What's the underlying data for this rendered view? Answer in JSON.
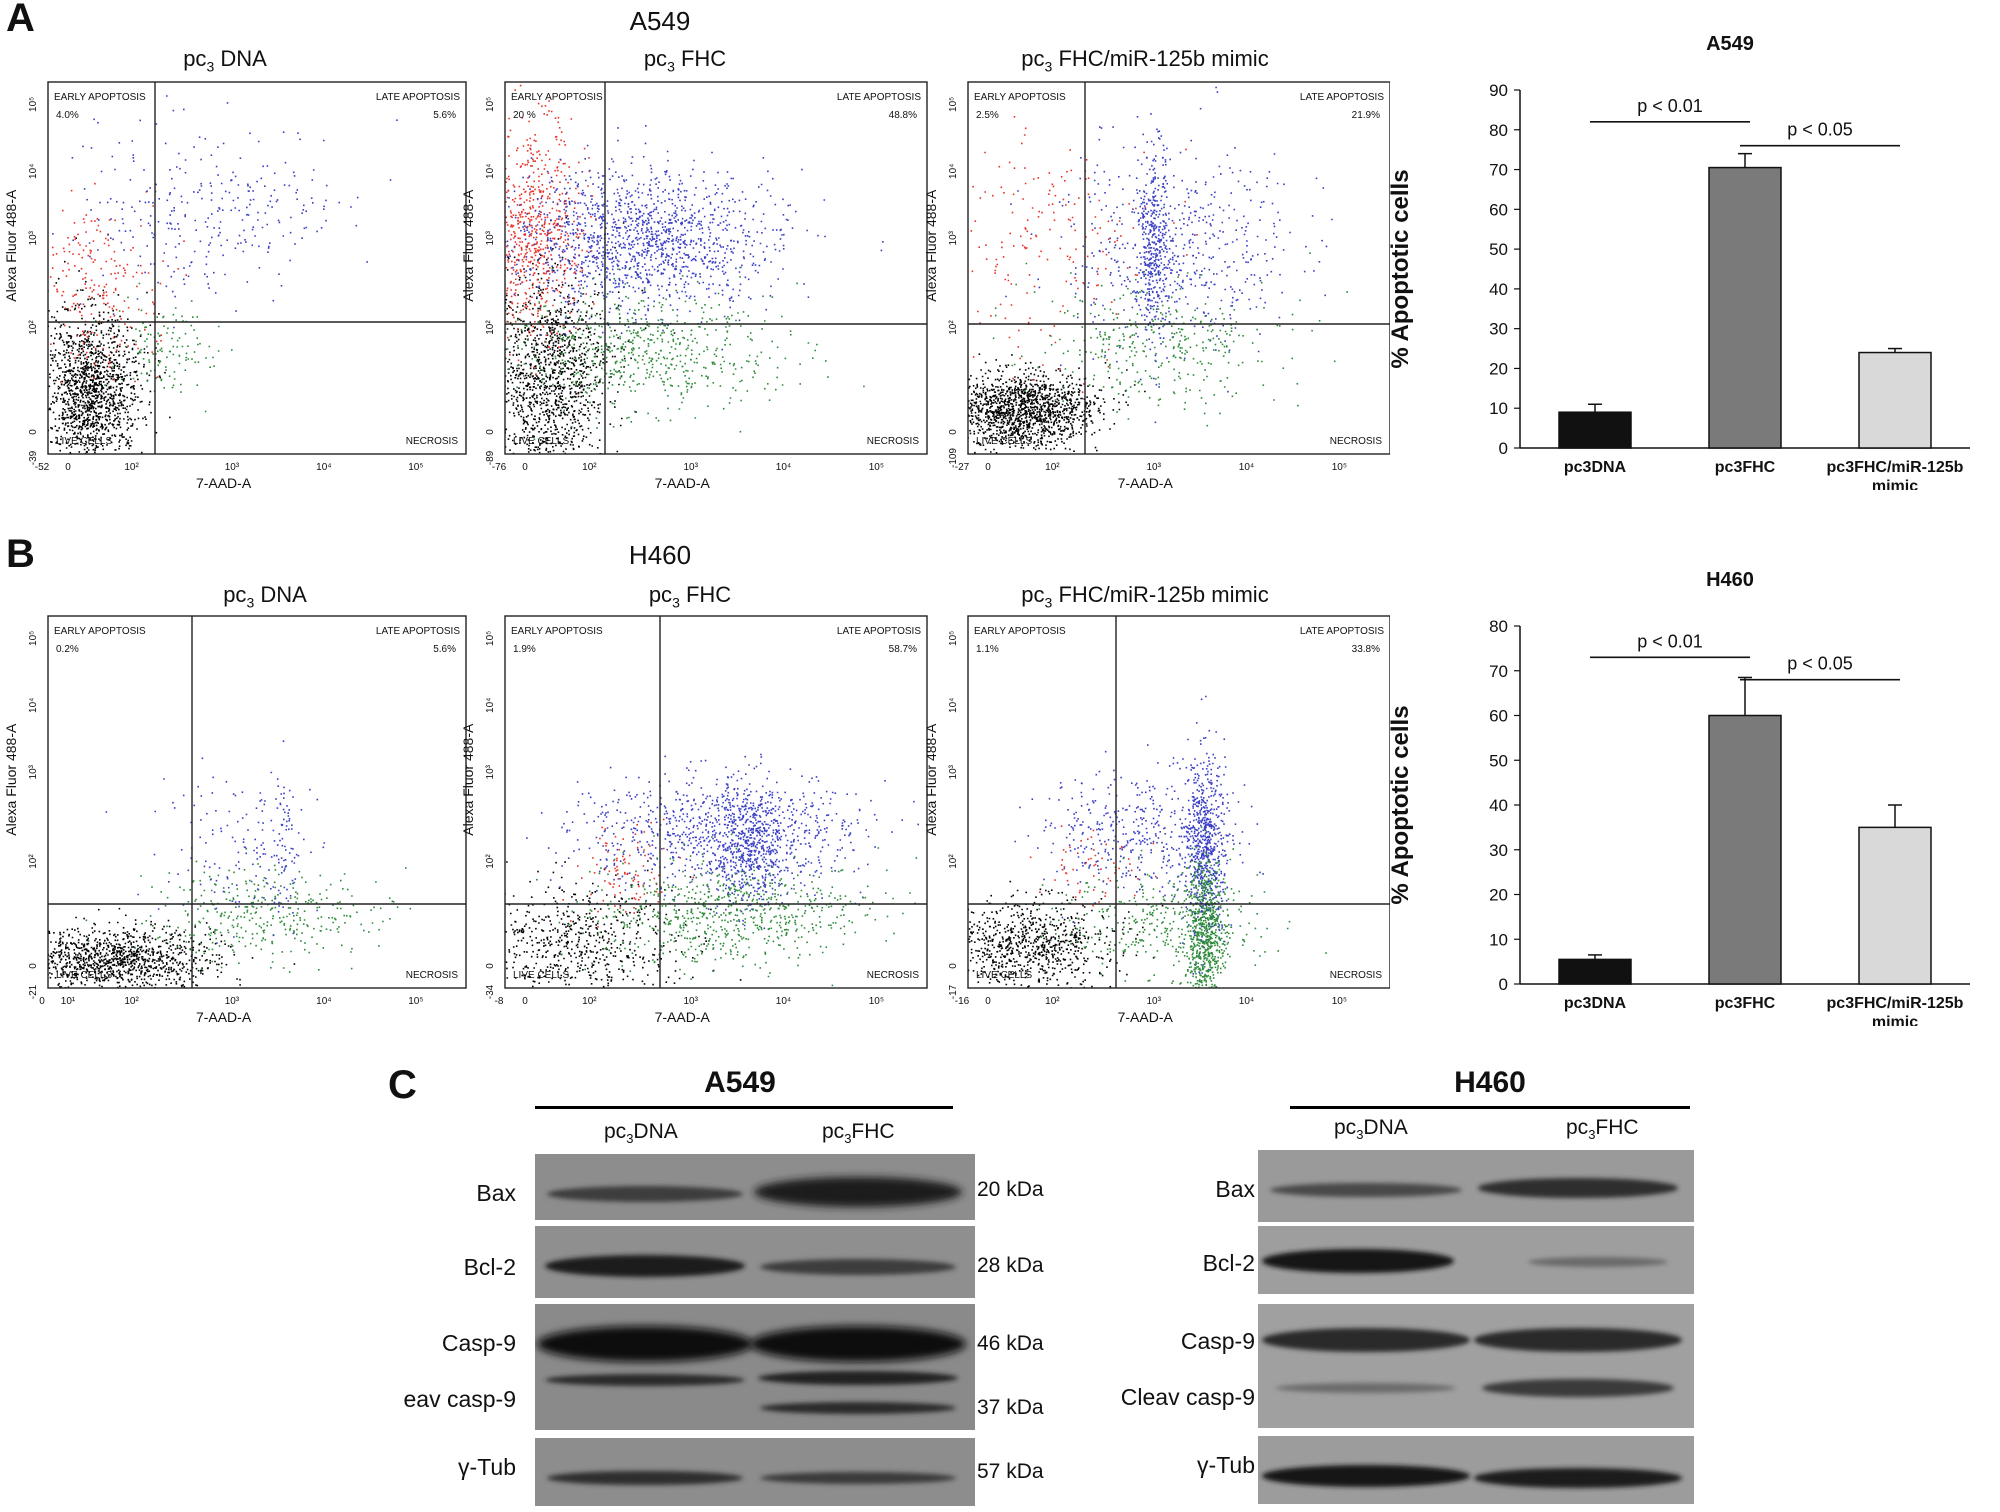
{
  "panels": {
    "A": "A",
    "B": "B",
    "C": "C"
  },
  "flow": {
    "rows": [
      {
        "title": "A549",
        "plots": [
          {
            "title_a": "pc",
            "title_sub": "3",
            "title_b": " DNA",
            "early": "4.0%",
            "late": "5.6%",
            "y_ticks": [
              "-39",
              "0",
              "10²",
              "10³",
              "10⁴",
              "10⁵"
            ],
            "x_ticks": [
              "-52",
              "0",
              "10²",
              "10³",
              "10⁴",
              "10⁵"
            ]
          },
          {
            "title_a": "pc",
            "title_sub": "3",
            "title_b": " FHC",
            "early": "20 %",
            "late": "48.8%",
            "y_ticks": [
              "-89",
              "0",
              "10²",
              "10³",
              "10⁴",
              "10⁵"
            ],
            "x_ticks": [
              "-76",
              "0",
              "10²",
              "10³",
              "10⁴",
              "10⁵"
            ]
          },
          {
            "title_a": "pc",
            "title_sub": "3",
            "title_b": " FHC/miR-125b mimic",
            "early": "2.5%",
            "late": "21.9%",
            "y_ticks": [
              "-109",
              "0",
              "10²",
              "10³",
              "10⁴",
              "10⁵"
            ],
            "x_ticks": [
              "-27",
              "0",
              "10²",
              "10³",
              "10⁴",
              "10⁵"
            ]
          }
        ]
      },
      {
        "title": "H460",
        "plots": [
          {
            "title_a": "pc",
            "title_sub": "3",
            "title_b": " DNA",
            "early": "0.2%",
            "late": "5.6%",
            "y_ticks": [
              "-21",
              "0",
              "10²",
              "10³",
              "10⁴",
              "10⁵"
            ],
            "x_ticks": [
              "0",
              "10¹",
              "10²",
              "10³",
              "10⁴",
              "10⁵"
            ]
          },
          {
            "title_a": "pc",
            "title_sub": "3",
            "title_b": " FHC",
            "early": "1.9%",
            "late": "58.7%",
            "y_ticks": [
              "-34",
              "0",
              "10²",
              "10³",
              "10⁴",
              "10⁵"
            ],
            "x_ticks": [
              "-8",
              "0",
              "10²",
              "10³",
              "10⁴",
              "10⁵"
            ]
          },
          {
            "title_a": "pc",
            "title_sub": "3",
            "title_b": " FHC/miR-125b mimic",
            "early": "1.1%",
            "late": "33.8%",
            "y_ticks": [
              "-17",
              "0",
              "10²",
              "10³",
              "10⁴",
              "10⁵"
            ],
            "x_ticks": [
              "-16",
              "0",
              "10²",
              "10³",
              "10⁴",
              "10⁵"
            ]
          }
        ]
      }
    ],
    "quadrants": {
      "early": "EARLY APOPTOSIS",
      "late": "LATE APOPTOSIS",
      "live": "LIVE CELLS",
      "necrosis": "NECROSIS"
    },
    "y_axis_label": "Alexa Fluor 488-A",
    "x_axis_label": "7-AAD-A",
    "colors": {
      "live": "#000000",
      "early": "#e8332a",
      "late": "#3a3fc4",
      "necrosis": "#2e8b3a"
    }
  },
  "chart_data": [
    {
      "type": "bar",
      "title": "A549",
      "categories": [
        "pc3DNA",
        "pc3FHC",
        "pc3FHC/miR-125b mimic"
      ],
      "category_lines": [
        [
          "pc3DNA"
        ],
        [
          "pc3FHC"
        ],
        [
          "pc3FHC/miR-125b",
          "mimic"
        ]
      ],
      "values": [
        9,
        70.5,
        24
      ],
      "errors": [
        2,
        3.5,
        1
      ],
      "bar_colors": [
        "#111111",
        "#7a7a7a",
        "#d9d9d9"
      ],
      "ylabel": "% Apoptotic cells",
      "ylim": [
        0,
        90
      ],
      "yticks": [
        0,
        10,
        20,
        30,
        40,
        50,
        60,
        70,
        80,
        90
      ],
      "annotations": [
        {
          "text": "p < 0.01",
          "from": 0,
          "to": 1,
          "level": 82
        },
        {
          "text": "p < 0.05",
          "from": 1,
          "to": 2,
          "level": 76
        }
      ]
    },
    {
      "type": "bar",
      "title": "H460",
      "categories": [
        "pc3DNA",
        "pc3FHC",
        "pc3FHC/miR-125b mimic"
      ],
      "category_lines": [
        [
          "pc3DNA"
        ],
        [
          "pc3FHC"
        ],
        [
          "pc3FHC/miR-125b",
          "mimic"
        ]
      ],
      "values": [
        5.5,
        60,
        35
      ],
      "errors": [
        1,
        8.5,
        5
      ],
      "bar_colors": [
        "#111111",
        "#7a7a7a",
        "#d9d9d9"
      ],
      "ylabel": "% Apoptotic cells",
      "ylim": [
        0,
        80
      ],
      "yticks": [
        0,
        10,
        20,
        30,
        40,
        50,
        60,
        70,
        80
      ],
      "annotations": [
        {
          "text": "p < 0.01",
          "from": 0,
          "to": 1,
          "level": 73
        },
        {
          "text": "p < 0.05",
          "from": 1,
          "to": 2,
          "level": 68
        }
      ]
    }
  ],
  "western": {
    "a549": {
      "title": "A549",
      "lane1_a": "pc",
      "lane1_sub": "3",
      "lane1_b": "DNA",
      "lane2_a": "pc",
      "lane2_sub": "3",
      "lane2_b": "FHC",
      "labels": [
        "Bax",
        "Bcl-2",
        "Casp-9",
        "eav casp-9",
        "γ-Tub"
      ],
      "kda": [
        "20  kDa",
        "28  kDa",
        "46  kDa",
        "37  kDa",
        "57  kDa"
      ]
    },
    "h460": {
      "title": "H460",
      "lane1_a": "pc",
      "lane1_sub": "3",
      "lane1_b": "DNA",
      "lane2_a": "pc",
      "lane2_sub": "3",
      "lane2_b": "FHC",
      "labels": [
        "Bax",
        "Bcl-2",
        "Casp-9",
        "Cleav casp-9",
        "γ-Tub"
      ]
    }
  }
}
